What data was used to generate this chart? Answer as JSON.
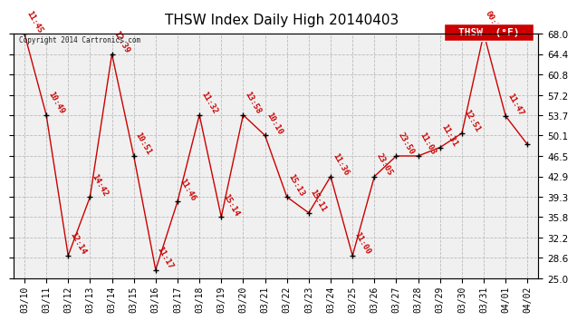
{
  "title": "THSW Index Daily High 20140403",
  "copyright": "Copyright 2014 Cartronics.com",
  "legend_label": "THSW  (°F)",
  "background_color": "#ffffff",
  "plot_background": "#f0f0f0",
  "grid_color": "#bbbbbb",
  "line_color": "#cc0000",
  "marker_color": "#000000",
  "label_color": "#cc0000",
  "dates": [
    "03/10",
    "03/11",
    "03/12",
    "03/13",
    "03/14",
    "03/15",
    "03/16",
    "03/17",
    "03/18",
    "03/19",
    "03/20",
    "03/21",
    "03/22",
    "03/23",
    "03/24",
    "03/25",
    "03/26",
    "03/27",
    "03/28",
    "03/29",
    "03/30",
    "03/31",
    "04/01",
    "04/02"
  ],
  "values": [
    68.0,
    53.7,
    29.0,
    39.3,
    64.4,
    46.5,
    26.5,
    38.5,
    53.7,
    35.8,
    53.7,
    50.1,
    39.3,
    36.5,
    42.9,
    29.0,
    42.9,
    46.5,
    46.5,
    48.0,
    50.5,
    68.0,
    53.5,
    48.5
  ],
  "time_labels": [
    "11:45",
    "10:49",
    "12:14",
    "14:42",
    "12:39",
    "10:51",
    "11:17",
    "11:46",
    "11:32",
    "15:14",
    "13:58",
    "10:10",
    "15:13",
    "15:11",
    "11:36",
    "11:00",
    "23:05",
    "23:50",
    "11:03",
    "11:31",
    "12:51",
    "00:00",
    "11:47",
    ""
  ],
  "ylim": [
    25.0,
    68.0
  ],
  "yticks": [
    25.0,
    28.6,
    32.2,
    35.8,
    39.3,
    42.9,
    46.5,
    50.1,
    53.7,
    57.2,
    60.8,
    64.4,
    68.0
  ],
  "title_fontsize": 11,
  "label_fontsize": 6.5,
  "tick_fontsize": 7.5,
  "legend_fontsize": 8
}
